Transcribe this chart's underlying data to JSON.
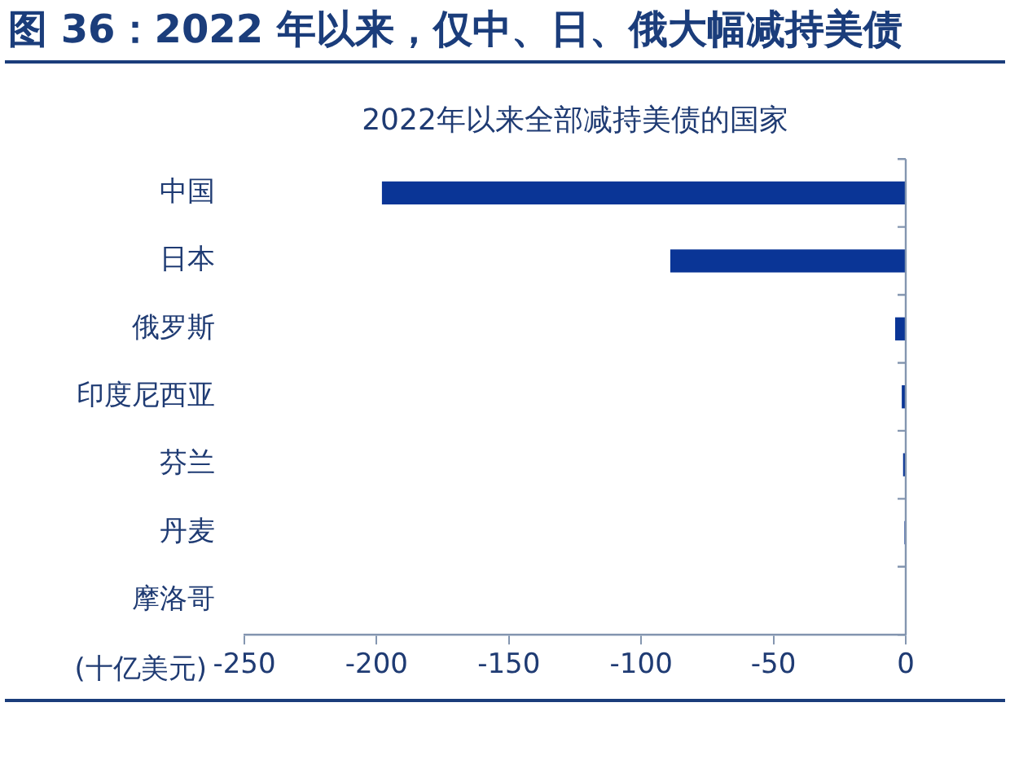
{
  "chart_data": {
    "type": "bar",
    "orientation": "horizontal",
    "title": "图 36：2022 年以来，仅中、日、俄大幅减持美债",
    "subtitle": "2022年以来全部减持美债的国家",
    "xlabel": "(十亿美元)",
    "categories": [
      "中国",
      "日本",
      "俄罗斯",
      "印度尼西亚",
      "芬兰",
      "丹麦",
      "摩洛哥"
    ],
    "values": [
      -198,
      -89,
      -4,
      -1.5,
      -1,
      -0.5,
      -0.3
    ],
    "color": "#0a3596",
    "xlim": [
      -250,
      0
    ],
    "xticks": [
      -250,
      -200,
      -150,
      -100,
      -50,
      0
    ]
  }
}
